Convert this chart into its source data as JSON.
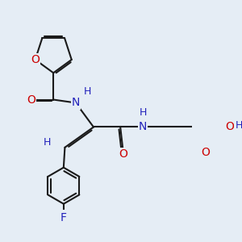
{
  "background_color": "#e5edf5",
  "bond_color": "#1a1a1a",
  "bond_width": 1.5,
  "atom_colors": {
    "O": "#cc0000",
    "N": "#2222bb",
    "F": "#2222bb",
    "H": "#2222bb",
    "C": "#1a1a1a"
  },
  "font_size": 10,
  "font_size_h": 9
}
